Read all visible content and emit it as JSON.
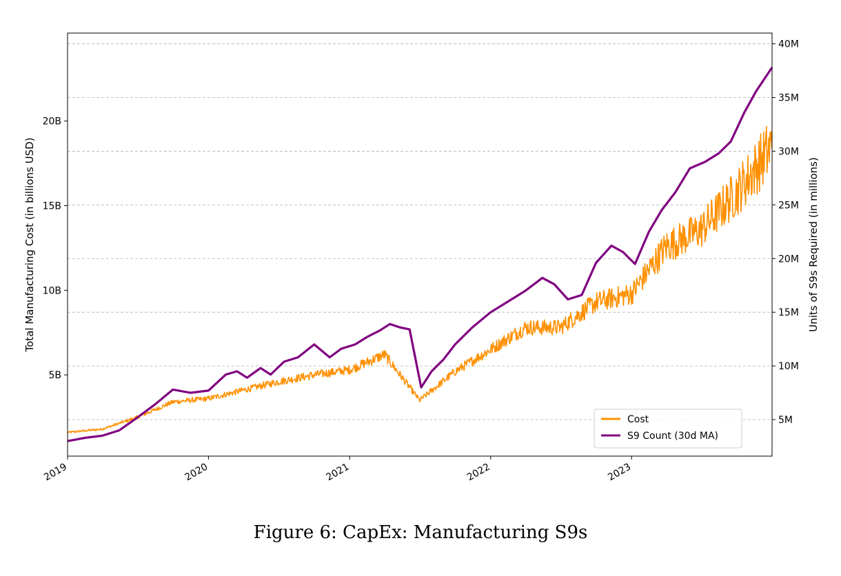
{
  "caption": "Figure 6: CapEx: Manufacturing S9s",
  "chart_data": {
    "type": "line",
    "title": "",
    "xlabel": "",
    "ylabel": "Total Manufacturing Cost (in billions USD)",
    "y2label": "Units of S9s Required (in millions)",
    "x_ticks": [
      "2019",
      "2020",
      "2021",
      "2022",
      "2023"
    ],
    "y_ticks": [
      "5B",
      "10B",
      "15B",
      "20B"
    ],
    "y_tick_values": [
      5,
      10,
      15,
      20
    ],
    "y2_ticks": [
      "5M",
      "10M",
      "15M",
      "20M",
      "25M",
      "30M",
      "35M",
      "40M"
    ],
    "y2_tick_values": [
      5,
      10,
      15,
      20,
      25,
      30,
      35,
      40
    ],
    "ylim": [
      0.2,
      25.2
    ],
    "y2lim": [
      1.6,
      41.0
    ],
    "xlim": [
      "2019-01-01",
      "2023-12-31"
    ],
    "grid": "horizontal dashed at right-axis ticks",
    "legend_position": "lower-right",
    "series": [
      {
        "name": "Cost",
        "axis": "left",
        "color": "#ff9000",
        "x": [
          "2019-01-01",
          "2019-04-01",
          "2019-07-01",
          "2019-10-01",
          "2020-01-01",
          "2020-04-01",
          "2020-07-01",
          "2020-10-01",
          "2021-01-01",
          "2021-04-01",
          "2021-07-01",
          "2021-10-01",
          "2022-01-01",
          "2022-04-01",
          "2022-07-01",
          "2022-10-01",
          "2023-01-01",
          "2023-04-01",
          "2023-07-01",
          "2023-10-01",
          "2023-12-31"
        ],
        "y": [
          1.6,
          1.8,
          2.5,
          3.4,
          3.6,
          4.1,
          4.6,
          5.0,
          5.3,
          6.2,
          3.5,
          5.2,
          6.5,
          7.8,
          7.8,
          9.3,
          9.8,
          12.6,
          13.6,
          15.8,
          18.5
        ]
      },
      {
        "name": "S9 Count (30d MA)",
        "axis": "right",
        "color": "#800080",
        "x": [
          "2019-01-01",
          "2019-02-15",
          "2019-04-01",
          "2019-05-15",
          "2019-07-01",
          "2019-08-15",
          "2019-10-01",
          "2019-11-15",
          "2020-01-01",
          "2020-02-15",
          "2020-03-15",
          "2020-04-10",
          "2020-05-15",
          "2020-06-10",
          "2020-07-15",
          "2020-08-20",
          "2020-10-01",
          "2020-11-10",
          "2020-12-10",
          "2021-01-15",
          "2021-02-15",
          "2021-03-20",
          "2021-04-15",
          "2021-05-10",
          "2021-06-05",
          "2021-07-05",
          "2021-08-01",
          "2021-09-01",
          "2021-10-01",
          "2021-11-15",
          "2022-01-01",
          "2022-02-15",
          "2022-04-01",
          "2022-05-15",
          "2022-06-15",
          "2022-07-20",
          "2022-08-25",
          "2022-10-01",
          "2022-11-10",
          "2022-12-10",
          "2023-01-10",
          "2023-02-15",
          "2023-03-20",
          "2023-04-25",
          "2023-06-01",
          "2023-07-10",
          "2023-08-15",
          "2023-09-15",
          "2023-10-20",
          "2023-11-20",
          "2023-12-31"
        ],
        "y": [
          3.0,
          3.3,
          3.5,
          4.0,
          5.2,
          6.4,
          7.8,
          7.5,
          7.7,
          9.2,
          9.5,
          8.9,
          9.8,
          9.2,
          10.4,
          10.8,
          12.0,
          10.8,
          11.6,
          12.0,
          12.7,
          13.3,
          13.9,
          13.6,
          13.4,
          8.0,
          9.5,
          10.6,
          12.0,
          13.6,
          15.0,
          16.0,
          17.0,
          18.2,
          17.6,
          16.2,
          16.6,
          19.6,
          21.2,
          20.6,
          19.5,
          22.5,
          24.5,
          26.2,
          28.4,
          29.0,
          29.8,
          30.9,
          33.6,
          35.6,
          37.8
        ]
      }
    ]
  }
}
